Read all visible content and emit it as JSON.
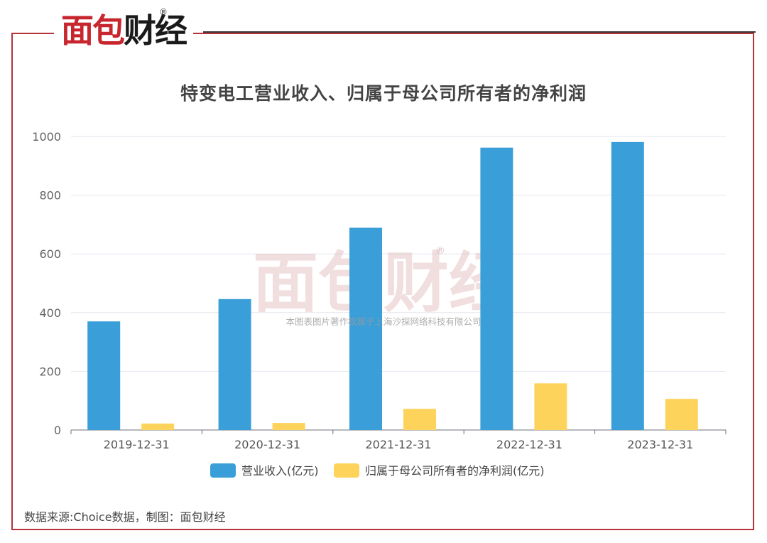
{
  "logo": {
    "text": "面包财经",
    "registered": "®"
  },
  "watermark": {
    "logo_text": "面包财经",
    "registered": "®",
    "caption": "本图表图片著作权属于上海沙探网络科技有限公司"
  },
  "source_note": "数据来源:Choice数据，制图：面包财经",
  "colors": {
    "frame": "#b6323a",
    "revenue": "#3a9fd9",
    "profit": "#fdd35c"
  },
  "chart_data": {
    "type": "bar",
    "title": "特变电工营业收入、归属于母公司所有者的净利润",
    "categories": [
      "2019-12-31",
      "2020-12-31",
      "2021-12-31",
      "2022-12-31",
      "2023-12-31"
    ],
    "series": [
      {
        "name": "营业收入(亿元)",
        "color": "#3a9fd9",
        "values": [
          370,
          446,
          689,
          962,
          981
        ]
      },
      {
        "name": "归属于母公司所有者的净利润(亿元)",
        "color": "#fdd35c",
        "values": [
          22,
          24,
          72,
          159,
          106
        ]
      }
    ],
    "yticks": [
      "0",
      "200",
      "400",
      "600",
      "800",
      "1000"
    ],
    "ylim": [
      0,
      1000
    ],
    "grid": true,
    "legend": "bottom-center"
  }
}
